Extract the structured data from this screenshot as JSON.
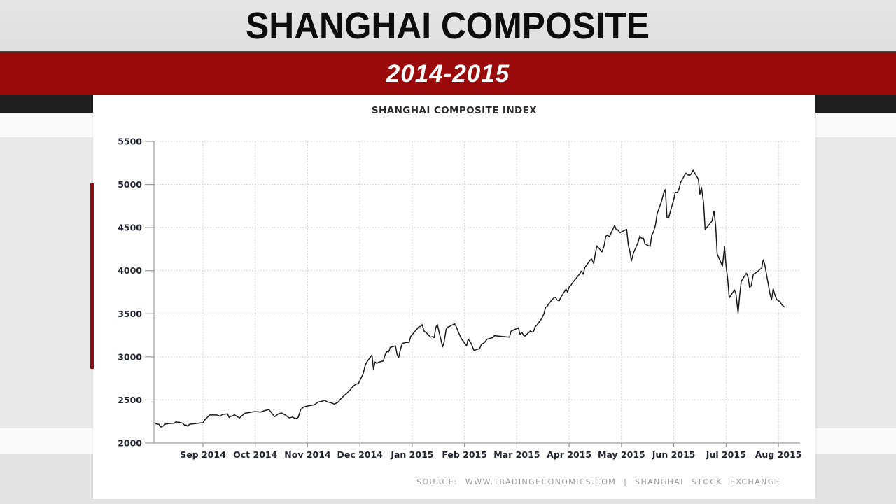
{
  "slide": {
    "title": "SHANGHAI COMPOSITE",
    "subtitle": "2014-2015",
    "colors": {
      "red_band": "#9a0a0a",
      "accent_bar": "#8f0f12",
      "black_strip": "#1f1f1f",
      "top_band": "#e3e3e3",
      "mid_bg": "#e9e9e9",
      "white_strip": "#fafafa",
      "bottom_bg": "#e4e4e4"
    }
  },
  "chart_data": {
    "type": "line",
    "title": "SHANGHAI COMPOSITE INDEX",
    "source": "SOURCE:  WWW.TRADINGECONOMICS.COM  |  SHANGHAI  STOCK  EXCHANGE",
    "xlabel": "",
    "ylabel": "",
    "legend": "none",
    "grid": "dotted",
    "ylim": [
      2000,
      5500
    ],
    "y_ticks": [
      2000,
      2500,
      3000,
      3500,
      4000,
      4500,
      5000,
      5500
    ],
    "x_tick_labels": [
      "Sep 2014",
      "Oct 2014",
      "Nov 2014",
      "Dec 2014",
      "Jan 2015",
      "Feb 2015",
      "Mar 2015",
      "Apr 2015",
      "May 2015",
      "Jun 2015",
      "Jul 2015",
      "Aug 2015"
    ],
    "x_range_months": [
      -0.94,
      11.42
    ],
    "line_color": "#1a1a1a",
    "grid_color": "#c9c9c9",
    "axis_color": "#9a9a9a",
    "tick_label_color": "#1f2430",
    "points": [
      [
        -0.9,
        2223
      ],
      [
        -0.87,
        2220
      ],
      [
        -0.84,
        2217
      ],
      [
        -0.81,
        2187
      ],
      [
        -0.77,
        2194
      ],
      [
        -0.71,
        2224
      ],
      [
        -0.68,
        2222
      ],
      [
        -0.65,
        2227
      ],
      [
        -0.61,
        2227
      ],
      [
        -0.55,
        2229
      ],
      [
        -0.52,
        2245
      ],
      [
        -0.48,
        2241
      ],
      [
        -0.45,
        2240
      ],
      [
        -0.39,
        2230
      ],
      [
        -0.35,
        2207
      ],
      [
        -0.32,
        2208
      ],
      [
        -0.29,
        2196
      ],
      [
        -0.26,
        2217
      ],
      [
        0.0,
        2236
      ],
      [
        0.03,
        2266
      ],
      [
        0.07,
        2290
      ],
      [
        0.1,
        2308
      ],
      [
        0.13,
        2326
      ],
      [
        0.27,
        2326
      ],
      [
        0.33,
        2311
      ],
      [
        0.37,
        2332
      ],
      [
        0.47,
        2339
      ],
      [
        0.5,
        2296
      ],
      [
        0.53,
        2311
      ],
      [
        0.57,
        2315
      ],
      [
        0.6,
        2329
      ],
      [
        0.7,
        2290
      ],
      [
        0.73,
        2310
      ],
      [
        0.77,
        2330
      ],
      [
        0.8,
        2345
      ],
      [
        0.83,
        2348
      ],
      [
        0.97,
        2363
      ],
      [
        1.03,
        2364
      ],
      [
        1.1,
        2359
      ],
      [
        1.16,
        2373
      ],
      [
        1.26,
        2389
      ],
      [
        1.3,
        2360
      ],
      [
        1.37,
        2306
      ],
      [
        1.44,
        2339
      ],
      [
        1.5,
        2348
      ],
      [
        1.58,
        2323
      ],
      [
        1.65,
        2291
      ],
      [
        1.71,
        2302
      ],
      [
        1.77,
        2283
      ],
      [
        1.82,
        2297
      ],
      [
        1.87,
        2391
      ],
      [
        1.93,
        2420
      ],
      [
        2.0,
        2430
      ],
      [
        2.07,
        2438
      ],
      [
        2.13,
        2444
      ],
      [
        2.2,
        2475
      ],
      [
        2.27,
        2484
      ],
      [
        2.32,
        2496
      ],
      [
        2.38,
        2477
      ],
      [
        2.45,
        2467
      ],
      [
        2.51,
        2452
      ],
      [
        2.58,
        2473
      ],
      [
        2.63,
        2509
      ],
      [
        2.69,
        2546
      ],
      [
        2.74,
        2572
      ],
      [
        2.8,
        2607
      ],
      [
        2.86,
        2651
      ],
      [
        2.92,
        2683
      ],
      [
        2.97,
        2688
      ],
      [
        3.03,
        2763
      ],
      [
        3.06,
        2800
      ],
      [
        3.1,
        2899
      ],
      [
        3.13,
        2938
      ],
      [
        3.23,
        3021
      ],
      [
        3.26,
        2856
      ],
      [
        3.29,
        2940
      ],
      [
        3.32,
        2925
      ],
      [
        3.36,
        2938
      ],
      [
        3.45,
        2953
      ],
      [
        3.48,
        3021
      ],
      [
        3.52,
        3061
      ],
      [
        3.55,
        3058
      ],
      [
        3.58,
        3109
      ],
      [
        3.68,
        3127
      ],
      [
        3.71,
        3032
      ],
      [
        3.74,
        2988
      ],
      [
        3.77,
        3072
      ],
      [
        3.81,
        3157
      ],
      [
        3.9,
        3168
      ],
      [
        3.94,
        3166
      ],
      [
        3.97,
        3235
      ],
      [
        4.13,
        3351
      ],
      [
        4.16,
        3352
      ],
      [
        4.19,
        3374
      ],
      [
        4.23,
        3294
      ],
      [
        4.26,
        3286
      ],
      [
        4.35,
        3229
      ],
      [
        4.39,
        3236
      ],
      [
        4.42,
        3222
      ],
      [
        4.45,
        3336
      ],
      [
        4.48,
        3376
      ],
      [
        4.58,
        3116
      ],
      [
        4.61,
        3174
      ],
      [
        4.65,
        3323
      ],
      [
        4.68,
        3344
      ],
      [
        4.71,
        3352
      ],
      [
        4.81,
        3383
      ],
      [
        4.84,
        3353
      ],
      [
        4.87,
        3306
      ],
      [
        4.9,
        3262
      ],
      [
        4.94,
        3210
      ],
      [
        5.04,
        3128
      ],
      [
        5.07,
        3205
      ],
      [
        5.11,
        3175
      ],
      [
        5.14,
        3136
      ],
      [
        5.18,
        3075
      ],
      [
        5.29,
        3095
      ],
      [
        5.32,
        3142
      ],
      [
        5.36,
        3157
      ],
      [
        5.39,
        3173
      ],
      [
        5.43,
        3204
      ],
      [
        5.54,
        3223
      ],
      [
        5.57,
        3246
      ],
      [
        5.86,
        3229
      ],
      [
        5.89,
        3298
      ],
      [
        5.93,
        3310
      ],
      [
        6.03,
        3336
      ],
      [
        6.06,
        3263
      ],
      [
        6.1,
        3280
      ],
      [
        6.13,
        3248
      ],
      [
        6.16,
        3241
      ],
      [
        6.26,
        3302
      ],
      [
        6.29,
        3286
      ],
      [
        6.32,
        3291
      ],
      [
        6.35,
        3349
      ],
      [
        6.39,
        3372
      ],
      [
        6.48,
        3449
      ],
      [
        6.52,
        3502
      ],
      [
        6.55,
        3577
      ],
      [
        6.58,
        3582
      ],
      [
        6.61,
        3617
      ],
      [
        6.71,
        3687
      ],
      [
        6.74,
        3691
      ],
      [
        6.77,
        3660
      ],
      [
        6.81,
        3649
      ],
      [
        6.84,
        3691
      ],
      [
        6.94,
        3786
      ],
      [
        6.97,
        3748
      ],
      [
        7.0,
        3810
      ],
      [
        7.03,
        3826
      ],
      [
        7.07,
        3864
      ],
      [
        7.2,
        3961
      ],
      [
        7.23,
        3994
      ],
      [
        7.27,
        3958
      ],
      [
        7.3,
        4034
      ],
      [
        7.4,
        4121
      ],
      [
        7.43,
        4136
      ],
      [
        7.47,
        4084
      ],
      [
        7.5,
        4194
      ],
      [
        7.53,
        4287
      ],
      [
        7.63,
        4218
      ],
      [
        7.67,
        4294
      ],
      [
        7.7,
        4398
      ],
      [
        7.73,
        4414
      ],
      [
        7.77,
        4394
      ],
      [
        7.87,
        4527
      ],
      [
        7.9,
        4476
      ],
      [
        7.93,
        4476
      ],
      [
        7.97,
        4441
      ],
      [
        8.1,
        4480
      ],
      [
        8.13,
        4298
      ],
      [
        8.16,
        4230
      ],
      [
        8.19,
        4112
      ],
      [
        8.23,
        4205
      ],
      [
        8.32,
        4333
      ],
      [
        8.35,
        4401
      ],
      [
        8.39,
        4375
      ],
      [
        8.42,
        4378
      ],
      [
        8.45,
        4308
      ],
      [
        8.55,
        4283
      ],
      [
        8.58,
        4417
      ],
      [
        8.61,
        4446
      ],
      [
        8.65,
        4529
      ],
      [
        8.68,
        4657
      ],
      [
        8.77,
        4814
      ],
      [
        8.81,
        4910
      ],
      [
        8.84,
        4941
      ],
      [
        8.87,
        4620
      ],
      [
        8.9,
        4611
      ],
      [
        9.0,
        4828
      ],
      [
        9.03,
        4910
      ],
      [
        9.07,
        4909
      ],
      [
        9.1,
        4947
      ],
      [
        9.13,
        5023
      ],
      [
        9.23,
        5132
      ],
      [
        9.27,
        5113
      ],
      [
        9.3,
        5106
      ],
      [
        9.33,
        5121
      ],
      [
        9.37,
        5166
      ],
      [
        9.47,
        5062
      ],
      [
        9.5,
        4887
      ],
      [
        9.53,
        4967
      ],
      [
        9.57,
        4785
      ],
      [
        9.6,
        4478
      ],
      [
        9.73,
        4576
      ],
      [
        9.77,
        4690
      ],
      [
        9.8,
        4527
      ],
      [
        9.83,
        4193
      ],
      [
        9.93,
        4053
      ],
      [
        9.97,
        4277
      ],
      [
        10.0,
        4054
      ],
      [
        10.03,
        3912
      ],
      [
        10.06,
        3687
      ],
      [
        10.16,
        3776
      ],
      [
        10.19,
        3727
      ],
      [
        10.23,
        3507
      ],
      [
        10.26,
        3709
      ],
      [
        10.29,
        3877
      ],
      [
        10.39,
        3970
      ],
      [
        10.42,
        3924
      ],
      [
        10.45,
        3806
      ],
      [
        10.48,
        3823
      ],
      [
        10.52,
        3957
      ],
      [
        10.61,
        3992
      ],
      [
        10.65,
        4018
      ],
      [
        10.68,
        4026
      ],
      [
        10.71,
        4124
      ],
      [
        10.74,
        4071
      ],
      [
        10.84,
        3726
      ],
      [
        10.87,
        3663
      ],
      [
        10.9,
        3789
      ],
      [
        10.94,
        3706
      ],
      [
        10.97,
        3664
      ],
      [
        11.03,
        3640
      ],
      [
        11.07,
        3601
      ],
      [
        11.11,
        3580
      ]
    ]
  }
}
